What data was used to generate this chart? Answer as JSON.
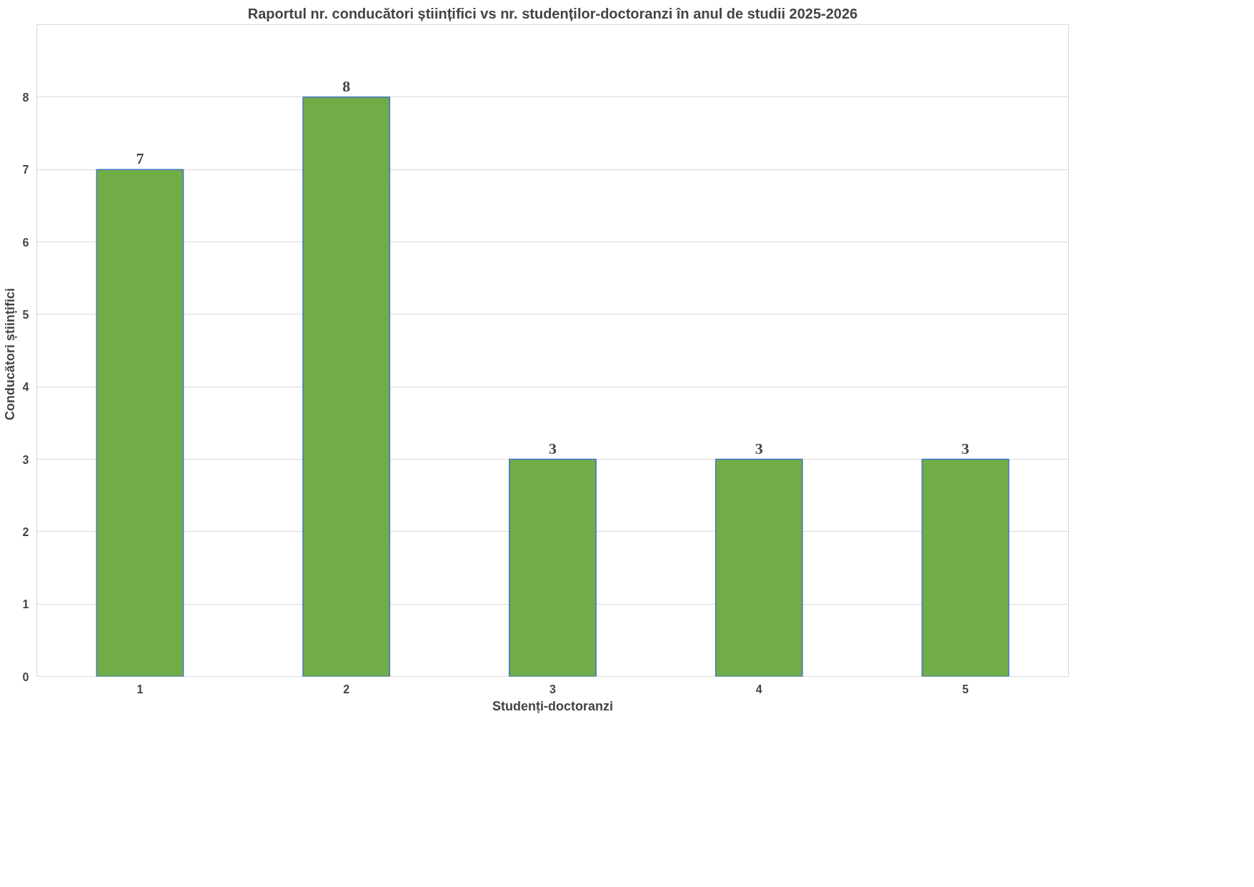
{
  "chart_data": {
    "type": "bar",
    "title": "Raportul nr. conducători științifici vs nr. studenților-doctoranzi în anul de studii 2025-2026",
    "xlabel": "Studenți-doctoranzi",
    "ylabel": "Conducători   științifici",
    "categories": [
      "1",
      "2",
      "3",
      "4",
      "5"
    ],
    "series": [
      {
        "color": "#70ad47",
        "values": [
          7,
          8,
          3,
          3,
          3
        ]
      }
    ],
    "ylim": [
      0,
      9
    ],
    "yticks": [
      0,
      1,
      2,
      3,
      4,
      5,
      6,
      7,
      8
    ],
    "grid": "y",
    "data_labels": true
  }
}
